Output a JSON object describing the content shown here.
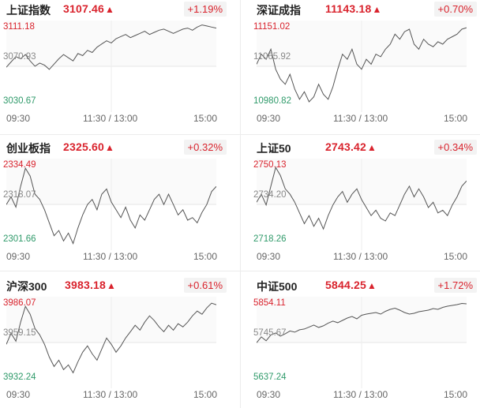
{
  "cards": [
    {
      "name": "上证指数",
      "price": "3107.46",
      "arrow": "▲",
      "change": "+1.19%",
      "y_high": "3111.18",
      "y_mid": "3070.93",
      "y_low": "3030.67",
      "time_start": "09:30",
      "time_mid": "11:30 / 13:00",
      "time_end": "15:00",
      "chart_data": {
        "type": "line",
        "ylim": [
          3030.67,
          3111.18
        ],
        "y": [
          3070,
          3075,
          3080,
          3078,
          3082,
          3076,
          3071,
          3074,
          3072,
          3068,
          3073,
          3078,
          3082,
          3079,
          3076,
          3083,
          3081,
          3086,
          3084,
          3089,
          3092,
          3095,
          3093,
          3097,
          3099,
          3101,
          3098,
          3100,
          3102,
          3104,
          3101,
          3103,
          3105,
          3106,
          3104,
          3102,
          3104,
          3106,
          3107,
          3105,
          3108,
          3110,
          3109,
          3108,
          3107
        ]
      }
    },
    {
      "name": "深证成指",
      "price": "11143.18",
      "arrow": "▲",
      "change": "+0.70%",
      "y_high": "11151.02",
      "y_mid": "11065.92",
      "y_low": "10980.82",
      "time_start": "09:30",
      "time_mid": "11:30 / 13:00",
      "time_end": "15:00",
      "chart_data": {
        "type": "line",
        "ylim": [
          10980.82,
          11151.02
        ],
        "y": [
          11070,
          11090,
          11080,
          11100,
          11060,
          11040,
          11030,
          11050,
          11020,
          11000,
          11015,
          10995,
          11005,
          11030,
          11010,
          11000,
          11025,
          11060,
          11090,
          11080,
          11100,
          11070,
          11060,
          11080,
          11070,
          11090,
          11085,
          11100,
          11110,
          11130,
          11120,
          11135,
          11140,
          11110,
          11100,
          11120,
          11110,
          11105,
          11115,
          11110,
          11120,
          11125,
          11130,
          11140,
          11143
        ]
      }
    },
    {
      "name": "创业板指",
      "price": "2325.60",
      "arrow": "▲",
      "change": "+0.32%",
      "y_high": "2334.49",
      "y_mid": "2318.07",
      "y_low": "2301.66",
      "time_start": "09:30",
      "time_mid": "11:30 / 13:00",
      "time_end": "15:00",
      "chart_data": {
        "type": "line",
        "ylim": [
          2301.66,
          2334.49
        ],
        "y": [
          2318,
          2321,
          2317,
          2325,
          2332,
          2329,
          2322,
          2320,
          2316,
          2311,
          2306,
          2308,
          2304,
          2307,
          2303,
          2309,
          2314,
          2318,
          2320,
          2316,
          2322,
          2324,
          2319,
          2316,
          2313,
          2317,
          2312,
          2309,
          2314,
          2312,
          2316,
          2320,
          2322,
          2318,
          2322,
          2318,
          2314,
          2316,
          2312,
          2313,
          2311,
          2315,
          2318,
          2323,
          2325
        ]
      }
    },
    {
      "name": "上证50",
      "price": "2743.42",
      "arrow": "▲",
      "change": "+0.34%",
      "y_high": "2750.13",
      "y_mid": "2734.20",
      "y_low": "2718.26",
      "time_start": "09:30",
      "time_mid": "11:30 / 13:00",
      "time_end": "15:00",
      "chart_data": {
        "type": "line",
        "ylim": [
          2718.26,
          2750.13
        ],
        "y": [
          2735,
          2738,
          2734,
          2741,
          2748,
          2745,
          2740,
          2738,
          2735,
          2731,
          2727,
          2730,
          2726,
          2729,
          2725,
          2730,
          2734,
          2737,
          2739,
          2735,
          2738,
          2740,
          2736,
          2733,
          2730,
          2732,
          2729,
          2728,
          2731,
          2730,
          2734,
          2738,
          2741,
          2737,
          2740,
          2737,
          2733,
          2735,
          2731,
          2732,
          2730,
          2734,
          2737,
          2741,
          2743
        ]
      }
    },
    {
      "name": "沪深300",
      "price": "3983.18",
      "arrow": "▲",
      "change": "+0.61%",
      "y_high": "3986.07",
      "y_mid": "3959.15",
      "y_low": "3932.24",
      "time_start": "09:30",
      "time_mid": "11:30 / 13:00",
      "time_end": "15:00",
      "chart_data": {
        "type": "line",
        "ylim": [
          3932.24,
          3986.07
        ],
        "y": [
          3958,
          3965,
          3960,
          3972,
          3982,
          3977,
          3968,
          3964,
          3958,
          3950,
          3944,
          3948,
          3942,
          3945,
          3940,
          3947,
          3953,
          3957,
          3952,
          3948,
          3955,
          3962,
          3958,
          3953,
          3957,
          3962,
          3966,
          3970,
          3967,
          3972,
          3976,
          3973,
          3969,
          3966,
          3970,
          3967,
          3971,
          3969,
          3972,
          3976,
          3979,
          3977,
          3981,
          3984,
          3983
        ]
      }
    },
    {
      "name": "中证500",
      "price": "5844.25",
      "arrow": "▲",
      "change": "+1.72%",
      "y_high": "5854.11",
      "y_mid": "5745.67",
      "y_low": "5637.24",
      "time_start": "09:30",
      "time_mid": "11:30 / 13:00",
      "time_end": "15:00",
      "chart_data": {
        "type": "line",
        "ylim": [
          5637.24,
          5854.11
        ],
        "y": [
          5745,
          5760,
          5750,
          5765,
          5770,
          5762,
          5768,
          5775,
          5772,
          5778,
          5780,
          5785,
          5790,
          5784,
          5788,
          5795,
          5800,
          5796,
          5802,
          5808,
          5812,
          5806,
          5815,
          5818,
          5820,
          5822,
          5818,
          5825,
          5830,
          5833,
          5828,
          5822,
          5818,
          5820,
          5824,
          5826,
          5828,
          5832,
          5830,
          5835,
          5838,
          5840,
          5842,
          5845,
          5844
        ]
      }
    }
  ]
}
